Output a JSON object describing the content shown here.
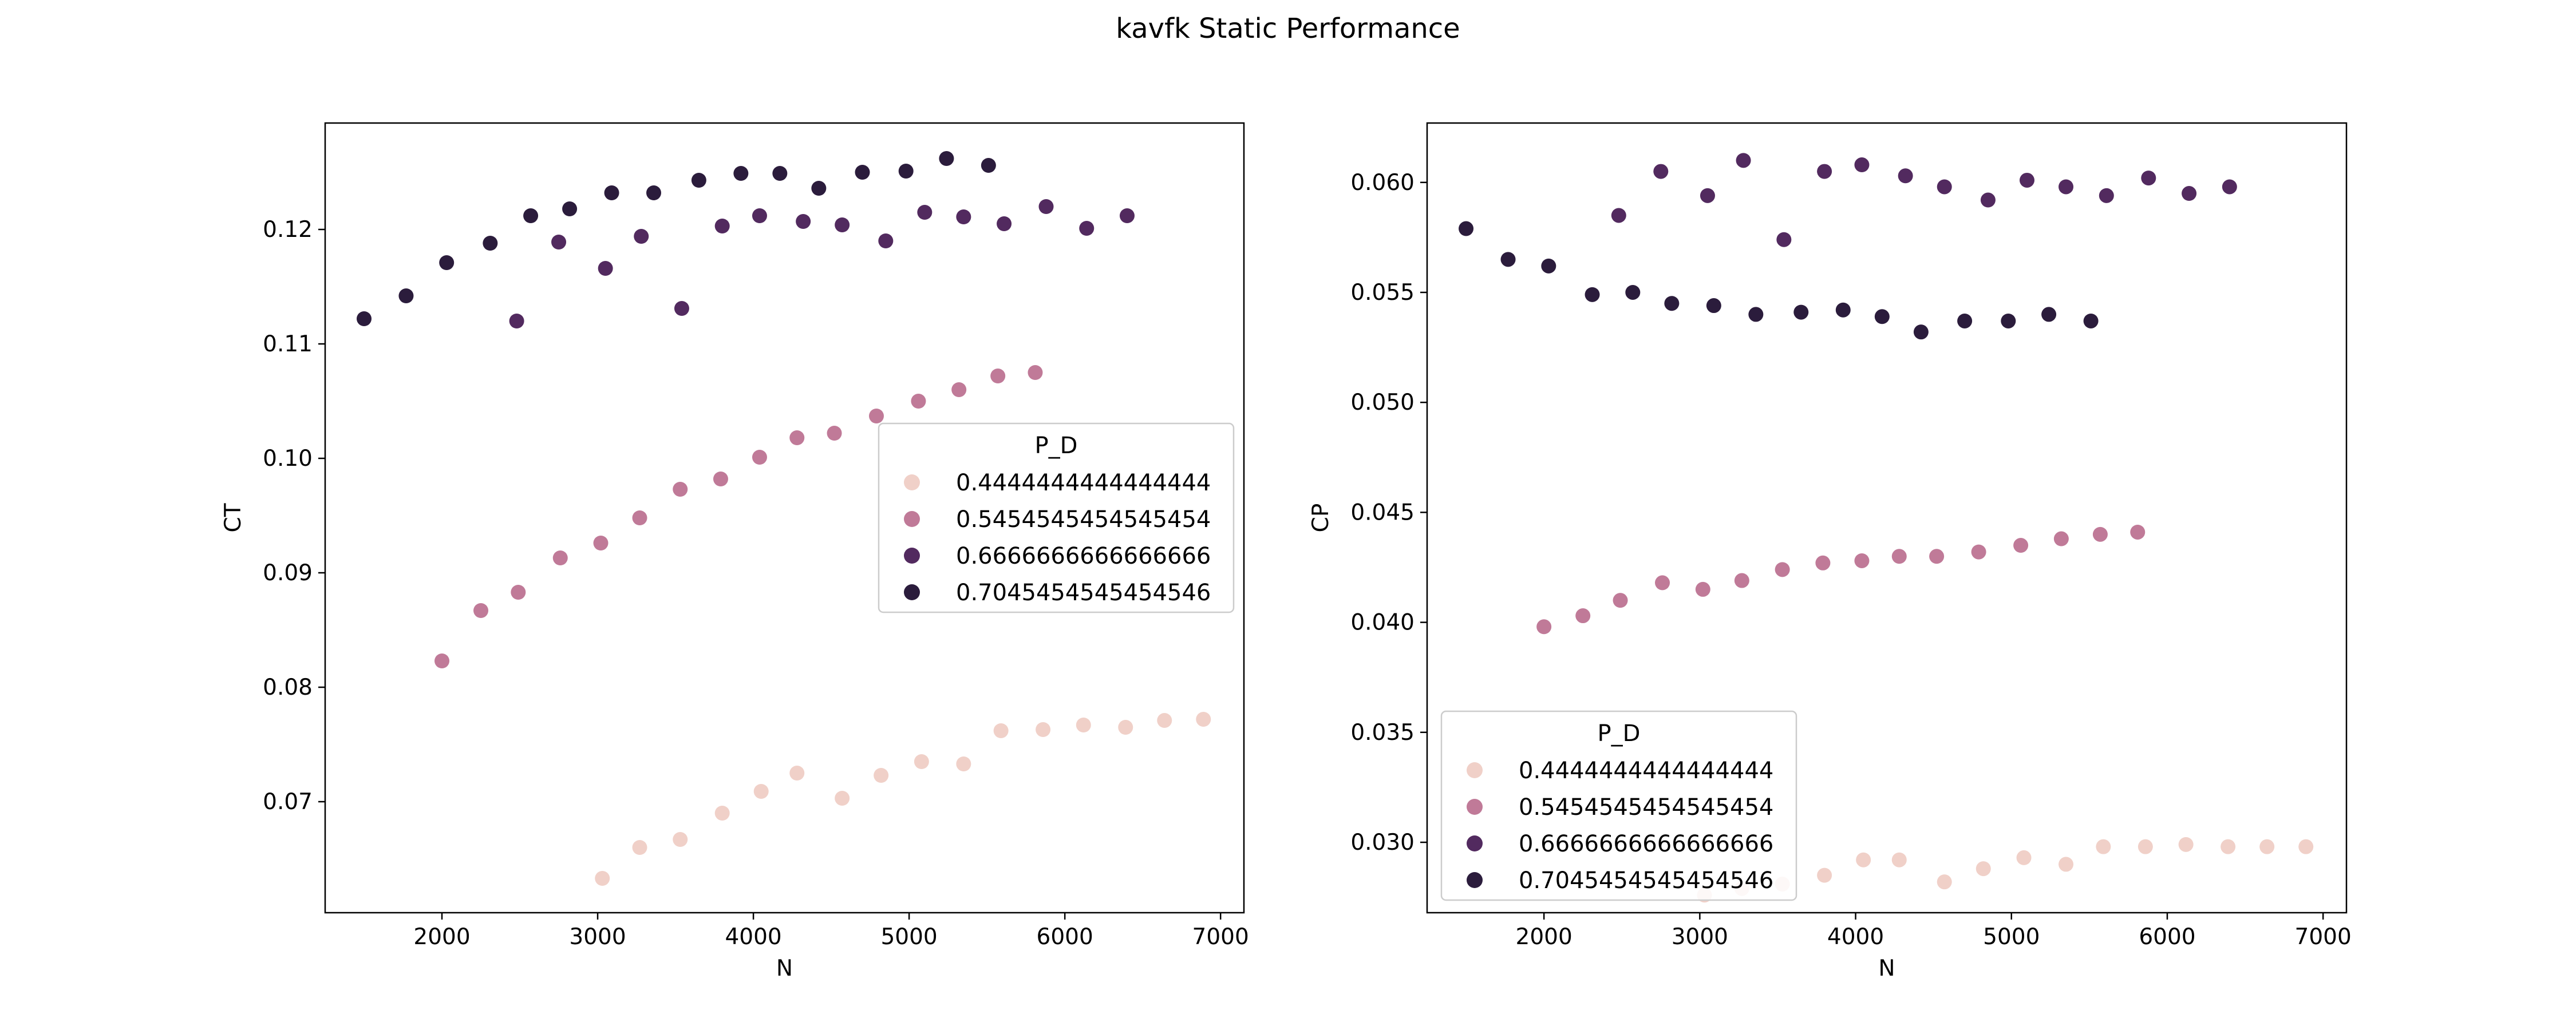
{
  "figure": {
    "title": "kavfk Static Performance"
  },
  "colors": {
    "0.4444444444444444": "#f0d0c8",
    "0.5454545454545454": "#c07a98",
    "0.6666666666666666": "#522a5f",
    "0.7045454545454546": "#2b1c3c"
  },
  "chart_data": [
    {
      "type": "scatter",
      "xlabel": "N",
      "ylabel": "CT",
      "xlim": [
        1250,
        7150
      ],
      "ylim": [
        0.0603,
        0.1293
      ],
      "xticks": [
        2000,
        3000,
        4000,
        5000,
        6000,
        7000
      ],
      "xtick_labels": [
        "2000",
        "3000",
        "4000",
        "5000",
        "6000",
        "7000"
      ],
      "yticks": [
        0.07,
        0.08,
        0.09,
        0.1,
        0.11,
        0.12
      ],
      "ytick_labels": [
        "0.07",
        "0.08",
        "0.09",
        "0.10",
        "0.11",
        "0.12"
      ],
      "legend": {
        "title": "P_D",
        "placement": "center-right"
      },
      "series": [
        {
          "name": "0.4444444444444444",
          "x": [
            3030,
            3270,
            3530,
            3800,
            4050,
            4280,
            4570,
            4820,
            5080,
            5350,
            5590,
            5860,
            6120,
            6390,
            6640,
            6890
          ],
          "y": [
            0.0633,
            0.066,
            0.0667,
            0.069,
            0.0709,
            0.0725,
            0.0703,
            0.0723,
            0.0735,
            0.0733,
            0.0762,
            0.0763,
            0.0767,
            0.0765,
            0.0771,
            0.0772
          ]
        },
        {
          "name": "0.5454545454545454",
          "x": [
            2000,
            2250,
            2490,
            2760,
            3020,
            3270,
            3530,
            3790,
            4040,
            4280,
            4520,
            4790,
            5060,
            5320,
            5570,
            5810
          ],
          "y": [
            0.0823,
            0.0867,
            0.0883,
            0.0913,
            0.0926,
            0.0948,
            0.0973,
            0.0982,
            0.1001,
            0.1018,
            0.1022,
            0.1037,
            0.105,
            0.106,
            0.1072,
            0.1075
          ]
        },
        {
          "name": "0.6666666666666666",
          "x": [
            2480,
            2750,
            3050,
            3280,
            3540,
            3800,
            4040,
            4320,
            4570,
            4850,
            5100,
            5350,
            5610,
            5880,
            6140,
            6400
          ],
          "y": [
            0.112,
            0.1189,
            0.1166,
            0.1194,
            0.1131,
            0.1203,
            0.1212,
            0.1207,
            0.1204,
            0.119,
            0.1215,
            0.1211,
            0.1205,
            0.122,
            0.1201,
            0.1212
          ]
        },
        {
          "name": "0.7045454545454546",
          "x": [
            1500,
            1770,
            2030,
            2310,
            2570,
            2820,
            3090,
            3360,
            3650,
            3920,
            4170,
            4420,
            4700,
            4980,
            5240,
            5510
          ],
          "y": [
            0.1122,
            0.1142,
            0.1171,
            0.1188,
            0.1212,
            0.1218,
            0.1232,
            0.1232,
            0.1243,
            0.1249,
            0.1249,
            0.1236,
            0.125,
            0.1251,
            0.1262,
            0.1256
          ]
        }
      ]
    },
    {
      "type": "scatter",
      "xlabel": "N",
      "ylabel": "CP",
      "xlim": [
        1250,
        7150
      ],
      "ylim": [
        0.0268,
        0.0627
      ],
      "xticks": [
        2000,
        3000,
        4000,
        5000,
        6000,
        7000
      ],
      "xtick_labels": [
        "2000",
        "3000",
        "4000",
        "5000",
        "6000",
        "7000"
      ],
      "yticks": [
        0.03,
        0.035,
        0.04,
        0.045,
        0.05,
        0.055,
        0.06
      ],
      "ytick_labels": [
        "0.030",
        "0.035",
        "0.040",
        "0.045",
        "0.050",
        "0.055",
        "0.060"
      ],
      "legend": {
        "title": "P_D",
        "placement": "lower-left"
      },
      "series": [
        {
          "name": "0.4444444444444444",
          "x": [
            3030,
            3270,
            3530,
            3800,
            4050,
            4280,
            4570,
            4820,
            5080,
            5350,
            5590,
            5860,
            6120,
            6390,
            6640,
            6890
          ],
          "y": [
            0.0276,
            0.0279,
            0.0281,
            0.0285,
            0.0292,
            0.0292,
            0.0282,
            0.0288,
            0.0293,
            0.029,
            0.0298,
            0.0298,
            0.0299,
            0.0298,
            0.0298,
            0.0298
          ]
        },
        {
          "name": "0.5454545454545454",
          "x": [
            2000,
            2250,
            2490,
            2760,
            3020,
            3270,
            3530,
            3790,
            4040,
            4280,
            4520,
            4790,
            5060,
            5320,
            5570,
            5810
          ],
          "y": [
            0.0398,
            0.0403,
            0.041,
            0.0418,
            0.0415,
            0.0419,
            0.0424,
            0.0427,
            0.0428,
            0.043,
            0.043,
            0.0432,
            0.0435,
            0.0438,
            0.044,
            0.0441
          ]
        },
        {
          "name": "0.6666666666666666",
          "x": [
            2480,
            2750,
            3050,
            3280,
            3540,
            3800,
            4040,
            4320,
            4570,
            4850,
            5100,
            5350,
            5610,
            5880,
            6140,
            6400
          ],
          "y": [
            0.0585,
            0.0605,
            0.0594,
            0.061,
            0.0574,
            0.0605,
            0.0608,
            0.0603,
            0.0598,
            0.0592,
            0.0601,
            0.0598,
            0.0594,
            0.0602,
            0.0595,
            0.0598
          ]
        },
        {
          "name": "0.7045454545454546",
          "x": [
            1500,
            1770,
            2030,
            2310,
            2570,
            2820,
            3090,
            3360,
            3650,
            3920,
            4170,
            4420,
            4700,
            4980,
            5240,
            5510
          ],
          "y": [
            0.0579,
            0.0565,
            0.0562,
            0.0549,
            0.055,
            0.0545,
            0.0544,
            0.054,
            0.0541,
            0.0542,
            0.0539,
            0.0532,
            0.0537,
            0.0537,
            0.054,
            0.0537
          ]
        }
      ]
    }
  ]
}
